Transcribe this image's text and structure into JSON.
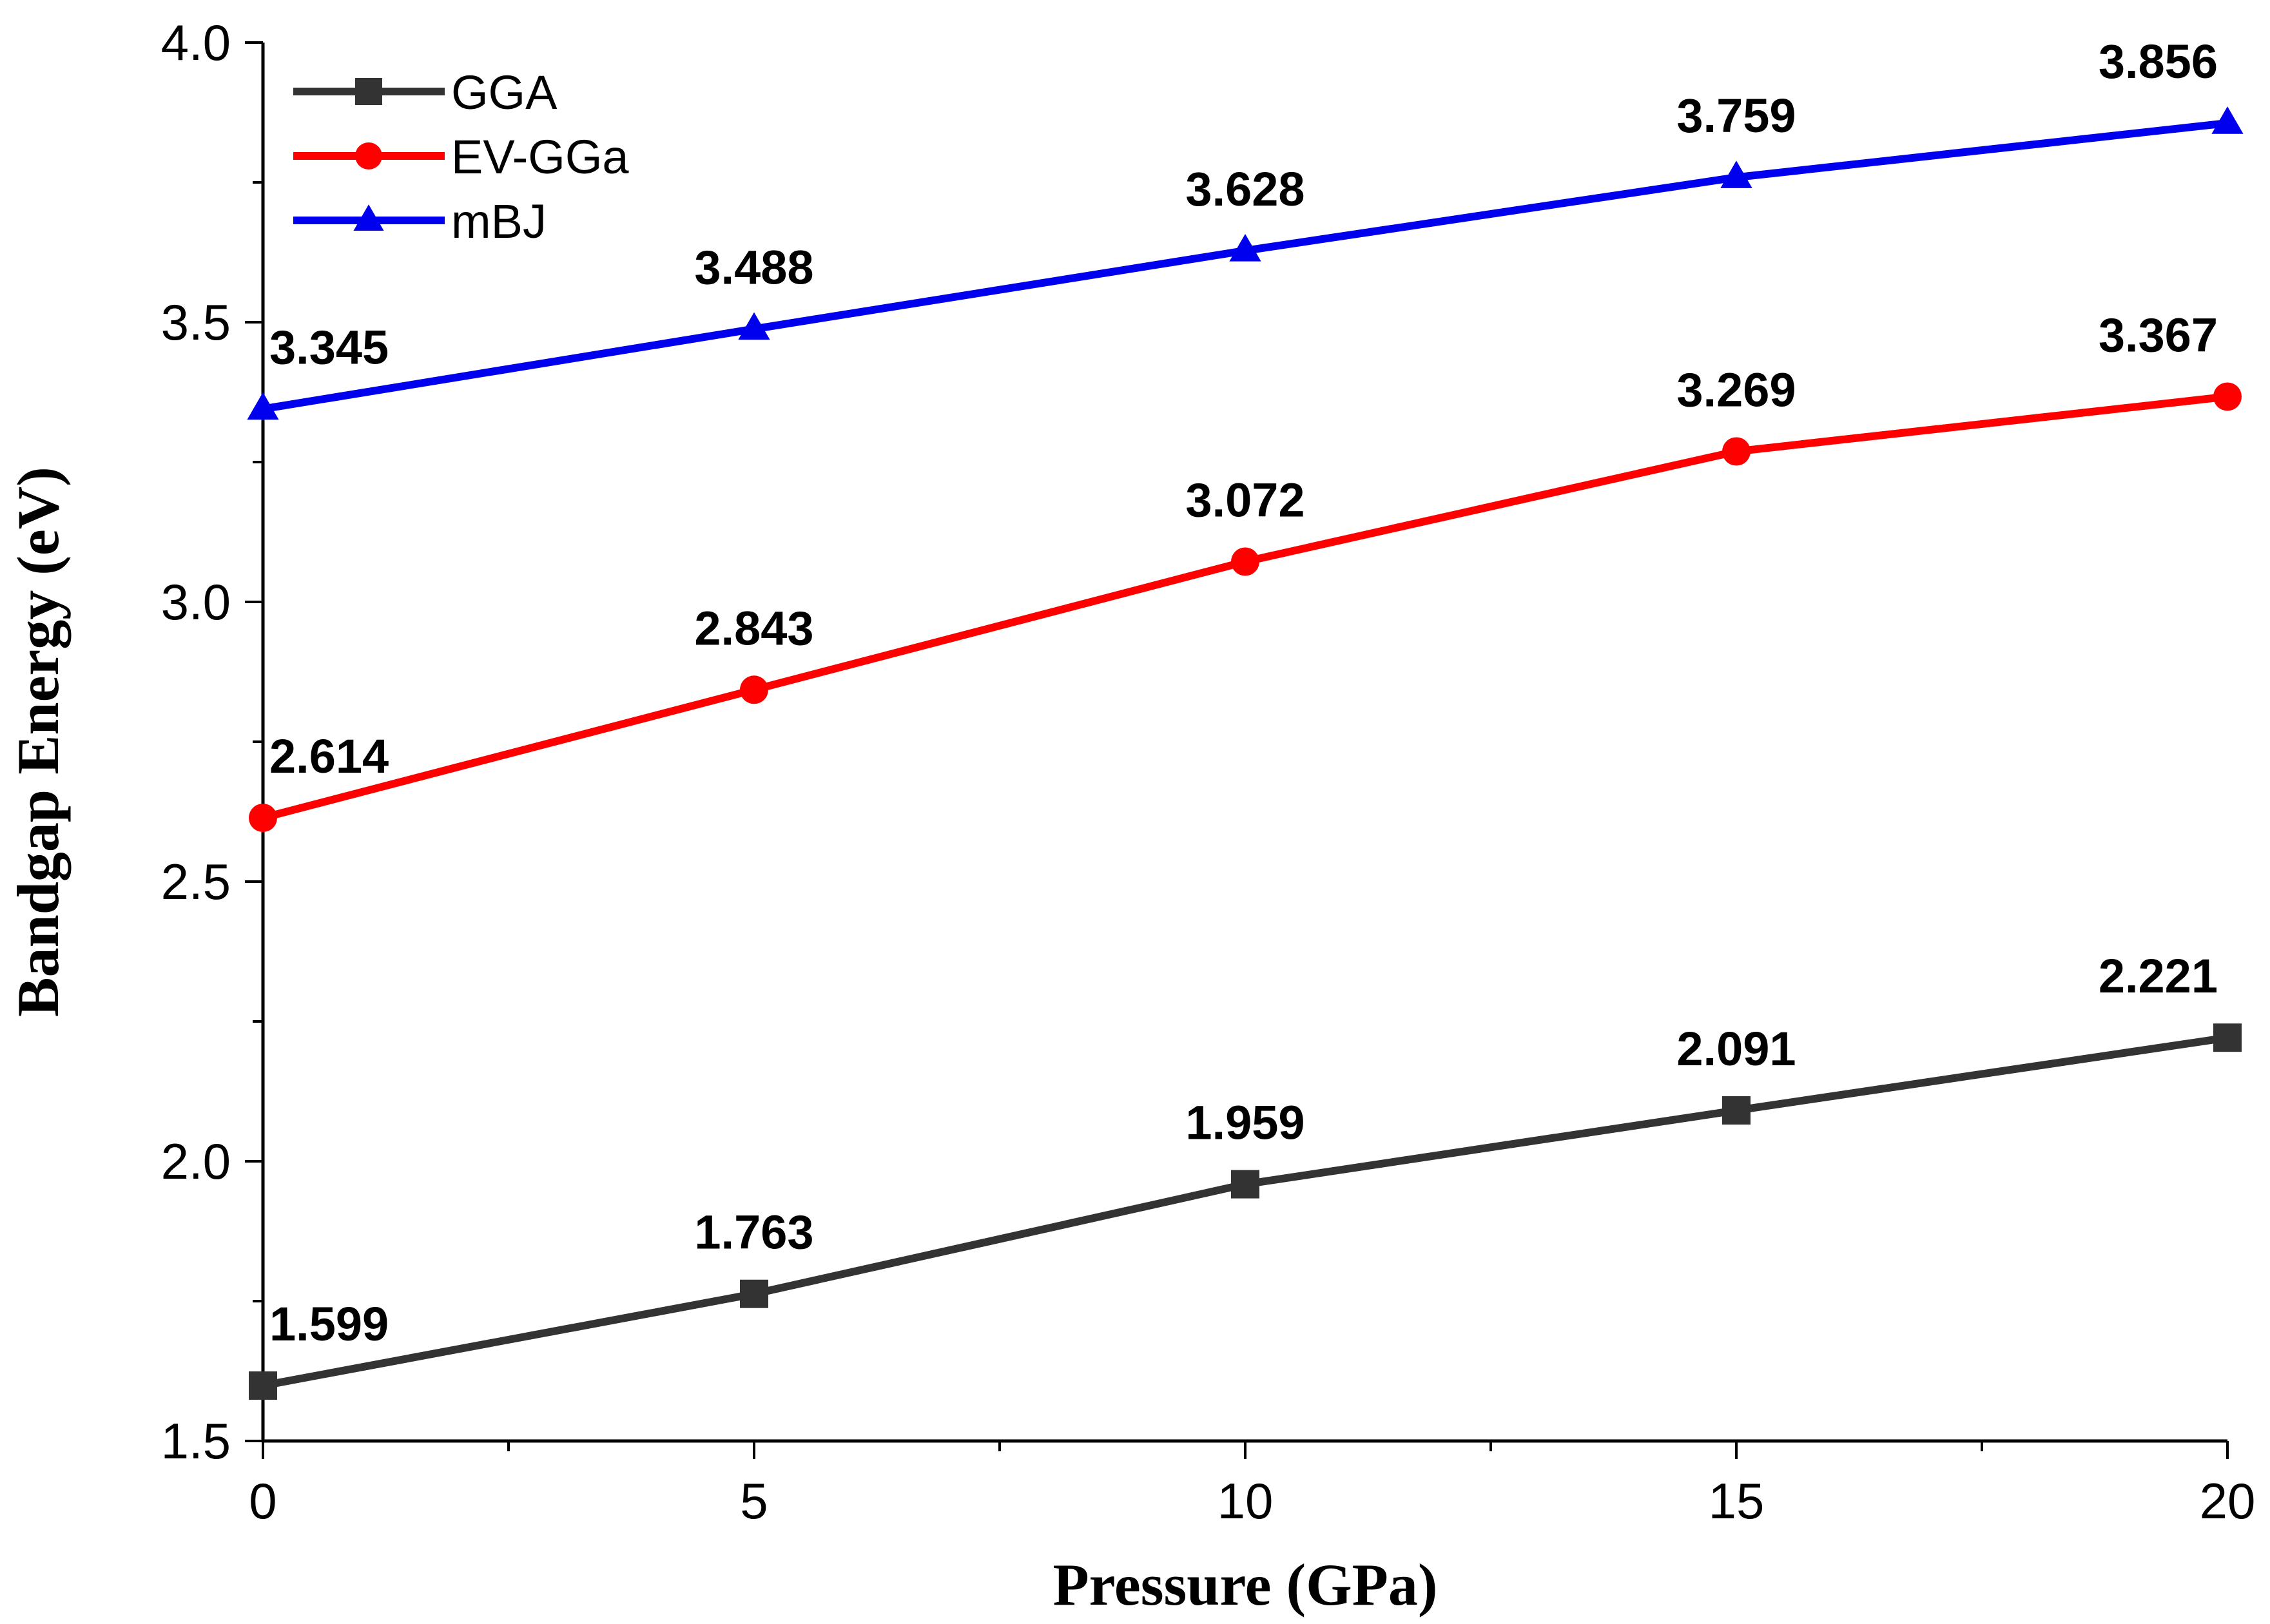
{
  "chart_data": {
    "type": "line",
    "title": "",
    "xlabel": "Pressure (GPa)",
    "ylabel": "Bandgap Energy (eV)",
    "xlim": [
      0,
      20
    ],
    "ylim": [
      1.5,
      4.0
    ],
    "x": [
      0,
      5,
      10,
      15,
      20
    ],
    "x_ticks": [
      "0",
      "5",
      "10",
      "15",
      "20"
    ],
    "y_ticks": [
      "1.5",
      "2.0",
      "2.5",
      "3.0",
      "3.5",
      "4.0"
    ],
    "x_tick_values": [
      0,
      5,
      10,
      15,
      20
    ],
    "y_tick_values": [
      1.5,
      2.0,
      2.5,
      3.0,
      3.5,
      4.0
    ],
    "grid": false,
    "legend_position": "top-left",
    "series": [
      {
        "name": "GGA",
        "color": "#333333",
        "marker": "square",
        "values": [
          1.599,
          1.763,
          1.959,
          2.091,
          2.221
        ],
        "labels": [
          "1.599",
          "1.763",
          "1.959",
          "2.091",
          "2.221"
        ]
      },
      {
        "name": "EV-GGa",
        "color": "#ff0000",
        "marker": "circle",
        "values": [
          2.614,
          2.843,
          3.072,
          3.269,
          3.367
        ],
        "labels": [
          "2.614",
          "2.843",
          "3.072",
          "3.269",
          "3.367"
        ]
      },
      {
        "name": "mBJ",
        "color": "#0000ee",
        "marker": "triangle",
        "values": [
          3.345,
          3.488,
          3.628,
          3.759,
          3.856
        ],
        "labels": [
          "3.345",
          "3.488",
          "3.628",
          "3.759",
          "3.856"
        ]
      }
    ]
  }
}
